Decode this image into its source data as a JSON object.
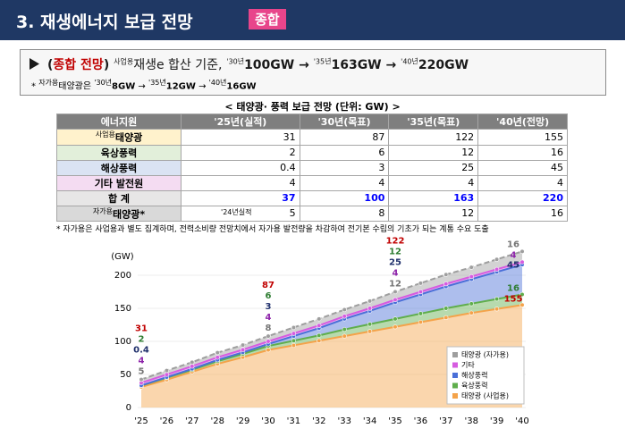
{
  "header": {
    "title": "3. 재생에너지 보급 전망",
    "badge": "종합"
  },
  "summary": {
    "line1": {
      "open": "(",
      "highlight": "종합 전망",
      "close": ")",
      "basis_sup": "사업용",
      "basis": "재생e 합산 기준,",
      "arrow": "→",
      "milestones": [
        {
          "sup": "'30년",
          "value": "100GW"
        },
        {
          "sup": "'35년",
          "value": "163GW"
        },
        {
          "sup": "'40년",
          "value": "220GW"
        }
      ]
    },
    "line2": {
      "star": "*",
      "sup": "자가용",
      "text": "태양광은",
      "arrow": "→",
      "milestones": [
        {
          "sup": "'30년",
          "value": "8GW"
        },
        {
          "sup": "'35년",
          "value": "12GW"
        },
        {
          "sup": "'40년",
          "value": "16GW"
        }
      ]
    }
  },
  "table": {
    "title": "< 태양광· 풍력 보급 전망 (단위: GW) >",
    "header": [
      "에너지원",
      "'25년(실적)",
      "'30년(목표)",
      "'35년(목표)",
      "'40년(전망)"
    ],
    "rows": [
      {
        "label_sup": "사업용",
        "label": "태양광",
        "cells": [
          31,
          87,
          122,
          155
        ]
      },
      {
        "label": "육상풍력",
        "cells": [
          2,
          6,
          12,
          16
        ]
      },
      {
        "label": "해상풍력",
        "cells": [
          0.4,
          3,
          25,
          45
        ]
      },
      {
        "label": "기타 발전원",
        "cells": [
          4,
          4,
          4,
          4
        ]
      },
      {
        "label": "합 계",
        "cells": [
          37,
          100,
          163,
          220
        ]
      },
      {
        "label_sup": "자가용",
        "label": "태양광*",
        "note": "'24년실적",
        "cells": [
          5,
          8,
          12,
          16
        ]
      }
    ]
  },
  "footnote": "* 자가용은 사업용과 별도 집계하며, 전력소비량 전망치에서 자가용 발전량을 차감하여 전기본 수립의 기초가 되는 계통 수요 도출",
  "chart_data": {
    "type": "stacked_area",
    "y_label": "(GW)",
    "categories": [
      "'25",
      "'26",
      "'27",
      "'28",
      "'29",
      "'30",
      "'31",
      "'32",
      "'33",
      "'34",
      "'35",
      "'36",
      "'37",
      "'38",
      "'39",
      "'40"
    ],
    "ylim": [
      0,
      250
    ],
    "yticks": [
      0,
      50,
      100,
      150,
      200
    ],
    "grid": true,
    "legend": "lower right",
    "series": [
      {
        "name": "태양광 (사업용)",
        "color": "#f4a34a",
        "label_color": "#c00000",
        "values": [
          31,
          42,
          54,
          66,
          76,
          87,
          94,
          101,
          108,
          115,
          122,
          129,
          136,
          143,
          149,
          155
        ]
      },
      {
        "name": "육상풍력",
        "color": "#5fae4c",
        "label_color": "#2e7d32",
        "values": [
          2,
          3,
          3,
          4,
          5,
          6,
          7,
          8,
          10,
          11,
          12,
          13,
          14,
          14,
          15,
          16
        ]
      },
      {
        "name": "해상풍력",
        "color": "#4a6fd8",
        "label_color": "#1f2f6b",
        "values": [
          0.4,
          0.9,
          1.4,
          1.9,
          2.4,
          3,
          7,
          11,
          16,
          20,
          25,
          29,
          33,
          37,
          41,
          45
        ]
      },
      {
        "name": "기타",
        "color": "#d65ce0",
        "label_color": "#8e24aa",
        "values": [
          4,
          4,
          4,
          4,
          4,
          4,
          4,
          4,
          4,
          4,
          4,
          4,
          4,
          4,
          4,
          4
        ]
      },
      {
        "name": "태양광 (자가용)",
        "color": "#9e9e9e",
        "label_color": "#757575",
        "values": [
          5,
          6,
          6,
          7,
          7,
          8,
          9,
          10,
          10,
          11,
          12,
          13,
          14,
          14,
          15,
          16
        ]
      }
    ]
  }
}
